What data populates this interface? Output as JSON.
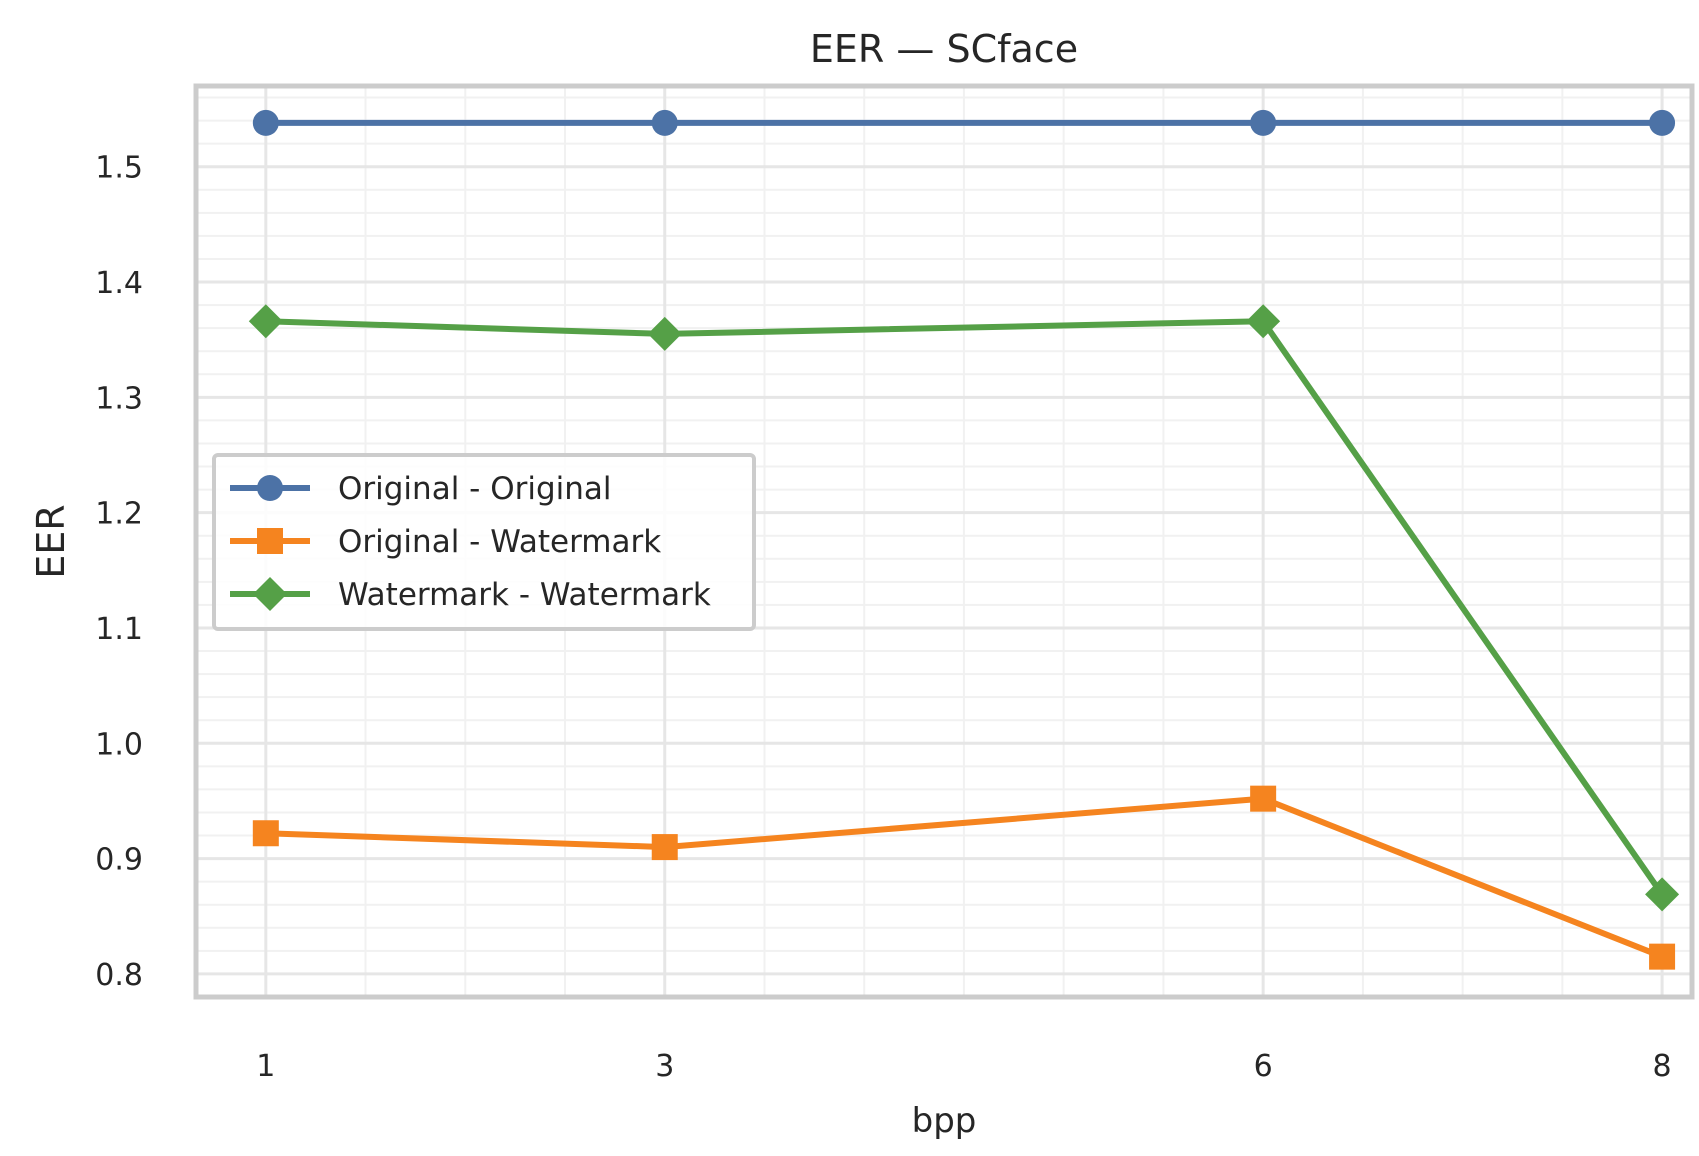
{
  "chart_data": {
    "type": "line",
    "title": "EER — SCface",
    "xlabel": "bpp",
    "ylabel": "EER",
    "x": [
      1,
      3,
      6,
      8
    ],
    "x_tick_labels": [
      "1",
      "3",
      "6",
      "8"
    ],
    "xlim": [
      0.65,
      8.15
    ],
    "ylim": [
      0.78,
      1.57
    ],
    "y_ticks": [
      0.8,
      0.9,
      1.0,
      1.1,
      1.2,
      1.3,
      1.4,
      1.5
    ],
    "y_tick_labels": [
      "0.8",
      "0.9",
      "1.0",
      "1.1",
      "1.2",
      "1.3",
      "1.4",
      "1.5"
    ],
    "grid": true,
    "minor_grid": true,
    "legend_position": "center-left",
    "series": [
      {
        "name": "Original - Original",
        "marker": "circle",
        "color": "#4c72a6",
        "values": [
          1.538,
          1.538,
          1.538,
          1.538
        ]
      },
      {
        "name": "Original - Watermark",
        "marker": "square",
        "color": "#f5841f",
        "values": [
          0.922,
          0.91,
          0.952,
          0.815
        ]
      },
      {
        "name": "Watermark - Watermark",
        "marker": "diamond",
        "color": "#55a047",
        "values": [
          1.366,
          1.355,
          1.366,
          0.869
        ]
      }
    ]
  }
}
